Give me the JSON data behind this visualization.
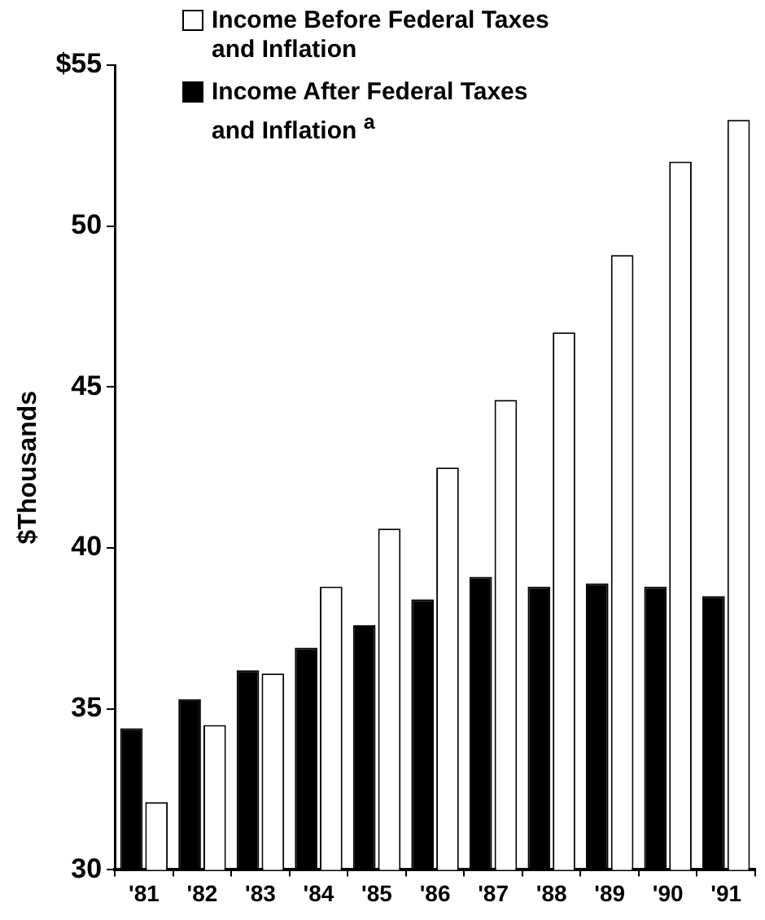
{
  "chart_data": {
    "type": "bar",
    "ylabel": "$Thousands",
    "categories": [
      "'81",
      "'82",
      "'83",
      "'84",
      "'85",
      "'86",
      "'87",
      "'88",
      "'89",
      "'90",
      "'91"
    ],
    "series": [
      {
        "name": "Income After Federal Taxes and Inflation $^{a}$",
        "color": "#000000",
        "values": [
          34.4,
          35.3,
          36.2,
          36.9,
          37.6,
          38.4,
          39.1,
          38.8,
          38.9,
          38.8,
          38.5
        ]
      },
      {
        "name": "Income Before Federal Taxes and Inflation",
        "color": "#ffffff",
        "values": [
          32.1,
          34.5,
          36.1,
          38.8,
          40.6,
          42.5,
          44.6,
          46.7,
          49.1,
          52.0,
          53.3
        ]
      }
    ],
    "ylim": [
      30,
      55
    ],
    "yticks": [
      30,
      35,
      40,
      45,
      50,
      {
        "value": 55,
        "label": "$55"
      }
    ],
    "grid": false,
    "legend": "top"
  }
}
